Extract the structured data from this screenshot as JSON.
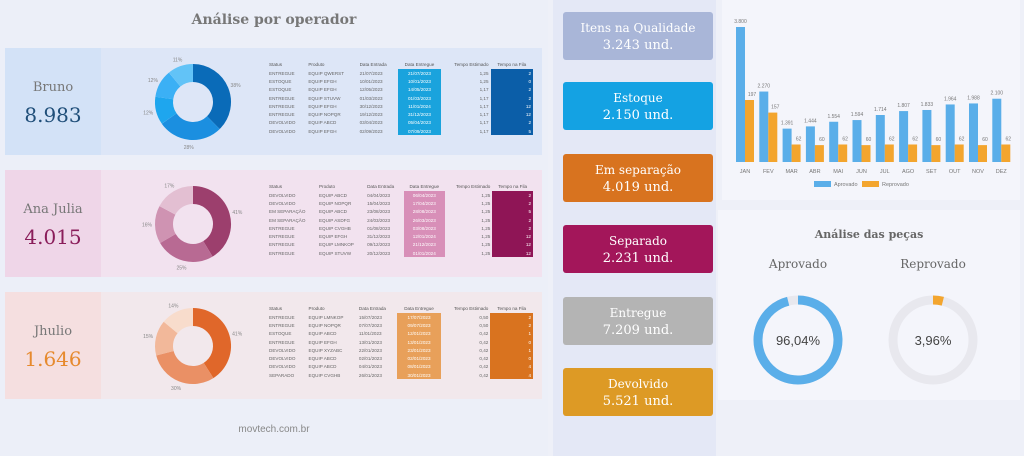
{
  "header": {
    "title": "Análise por operador"
  },
  "footer": {
    "text": "movtech.com.br"
  },
  "table_headers": [
    "Status",
    "Produto",
    "Data Entrada",
    "Data Entregue",
    "Tempo Estimado",
    "Tempo na Fila"
  ],
  "operators": [
    {
      "name": "Bruno",
      "value": "8.983",
      "bg": "#dde6f7",
      "name_bg": "#d3e2f7",
      "val_color": "#1f4e79",
      "col1": "#1aa3dd",
      "col2": "#0b5ea8",
      "donut": {
        "values": [
          38,
          28,
          12,
          12,
          11
        ],
        "labels": [
          "38%",
          "28%",
          "12%",
          "12%",
          "11%"
        ],
        "colors": [
          "#0a6bb8",
          "#1b8fe0",
          "#1ea6ee",
          "#3bb0f5",
          "#62c3f7"
        ]
      },
      "rows": [
        [
          "ENTREGUE",
          "EQUIP QWERST",
          "21/07/2023",
          "21/07/2023",
          "1,25",
          "2"
        ],
        [
          "ESTOQUE",
          "EQUIP EFGH",
          "10/01/2023",
          "10/01/2023",
          "1,25",
          "0"
        ],
        [
          "ESTOQUE",
          "EQUIP EFGH",
          "12/05/2023",
          "14/05/2023",
          "1,17",
          "2"
        ],
        [
          "ENTREGUE",
          "EQUIP STUVW",
          "01/03/2023",
          "01/03/2023",
          "1,17",
          "2"
        ],
        [
          "ENTREGUE",
          "EQUIP EFGH",
          "30/12/2023",
          "11/01/2024",
          "1,17",
          "12"
        ],
        [
          "ENTREGUE",
          "EQUIP NOPQR",
          "19/12/2023",
          "31/12/2023",
          "1,17",
          "12"
        ],
        [
          "DEVOLVIDO",
          "EQUIP ABCD",
          "03/04/2023",
          "05/04/2023",
          "1,17",
          "2"
        ],
        [
          "DEVOLVIDO",
          "EQUIP EFGH",
          "02/09/2023",
          "07/09/2023",
          "1,17",
          "5"
        ]
      ]
    },
    {
      "name": "Ana Julia",
      "value": "4.015",
      "bg": "#f2e2ef",
      "name_bg": "#efd6e8",
      "val_color": "#8a1d5a",
      "col1": "#d88fb8",
      "col2": "#8f1556",
      "donut": {
        "values": [
          41,
          25,
          16,
          17
        ],
        "labels": [
          "41%",
          "25%",
          "16%",
          "17%"
        ],
        "colors": [
          "#9c3f6d",
          "#b86a93",
          "#cf93b2",
          "#e3bfd2"
        ]
      },
      "rows": [
        [
          "DEVOLVIDO",
          "EQUIP ABCD",
          "04/04/2023",
          "06/04/2023",
          "1,25",
          "2"
        ],
        [
          "DEVOLVIDO",
          "EQUIP NOPQR",
          "15/04/2023",
          "17/04/2023",
          "1,25",
          "2"
        ],
        [
          "EM SEPARAÇÃO",
          "EQUIP ABCD",
          "23/08/2023",
          "28/08/2023",
          "1,25",
          "5"
        ],
        [
          "EM SEPARAÇÃO",
          "EQUIP ASDFG",
          "24/03/2023",
          "26/03/2023",
          "1,25",
          "2"
        ],
        [
          "ENTREGUE",
          "EQUIP CVGHB",
          "01/08/2023",
          "03/08/2023",
          "1,25",
          "2"
        ],
        [
          "ENTREGUE",
          "EQUIP EFGH",
          "31/12/2023",
          "12/01/2024",
          "1,25",
          "12"
        ],
        [
          "ENTREGUE",
          "EQUIP LMNKOP",
          "09/12/2023",
          "21/12/2023",
          "1,25",
          "12"
        ],
        [
          "ENTREGUE",
          "EQUIP STUVW",
          "20/12/2023",
          "01/01/2024",
          "1,25",
          "12"
        ]
      ]
    },
    {
      "name": "Jhulio",
      "value": "1.646",
      "bg": "#f2e8ec",
      "name_bg": "#f5dfe0",
      "val_color": "#e68a2e",
      "col1": "#e8a05a",
      "col2": "#d9731f",
      "donut": {
        "values": [
          41,
          30,
          15,
          14
        ],
        "labels": [
          "41%",
          "30%",
          "15%",
          "14%"
        ],
        "colors": [
          "#e0672a",
          "#ea9065",
          "#f2b89a",
          "#f8dccc"
        ]
      },
      "rows": [
        [
          "ENTREGUE",
          "EQUIP LMNKOP",
          "15/07/2023",
          "17/07/2023",
          "0,50",
          "2"
        ],
        [
          "ENTREGUE",
          "EQUIP NOPQR",
          "07/07/2023",
          "09/07/2023",
          "0,50",
          "2"
        ],
        [
          "ESTOQUE",
          "EQUIP ABCD",
          "11/01/2023",
          "12/01/2023",
          "0,42",
          "1"
        ],
        [
          "ENTREGUE",
          "EQUIP EFGH",
          "13/01/2023",
          "13/01/2023",
          "0,42",
          "0"
        ],
        [
          "DEVOLVIDO",
          "EQUIP XYZABC",
          "22/01/2023",
          "23/01/2023",
          "0,42",
          "1"
        ],
        [
          "DEVOLVIDO",
          "EQUIP ABCD",
          "02/01/2023",
          "02/01/2023",
          "0,42",
          "0"
        ],
        [
          "DEVOLVIDO",
          "EQUIP ABCD",
          "04/01/2023",
          "08/01/2023",
          "0,42",
          "4"
        ],
        [
          "SEPARADO",
          "EQUIP CVGHB",
          "26/01/2023",
          "30/01/2023",
          "0,42",
          "4"
        ]
      ]
    }
  ],
  "cards": [
    {
      "label": "Itens na Qualidade",
      "value": "3.243 und.",
      "color": "#a9b6d8"
    },
    {
      "label": "Estoque",
      "value": "2.150 und.",
      "color": "#14a2e3"
    },
    {
      "label": "Em separação",
      "value": "4.019 und.",
      "color": "#d8731f"
    },
    {
      "label": "Separado",
      "value": "2.231 und.",
      "color": "#a3165a"
    },
    {
      "label": "Entregue",
      "value": "7.209 und.",
      "color": "#b4b4b4"
    },
    {
      "label": "Devolvido",
      "value": "5.521 und.",
      "color": "#dd9a25"
    }
  ],
  "chart_data": {
    "type": "bar",
    "categories": [
      "JAN",
      "FEV",
      "MAR",
      "ABR",
      "MAI",
      "JUN",
      "JUL",
      "AGO",
      "SET",
      "OUT",
      "NOV",
      "DEZ"
    ],
    "series": [
      {
        "name": "Aprovado",
        "color": "#5aaee9",
        "values": [
          3800,
          2270,
          1391,
          1444,
          1554,
          1594,
          1714,
          1807,
          1833,
          1964,
          1988,
          2100
        ],
        "labels": [
          "3.800",
          "2.270",
          "1.391",
          "1.444",
          "1.554",
          "1.594",
          "1.714",
          "1.807",
          "1.833",
          "1.964",
          "1.988",
          "2.100"
        ]
      },
      {
        "name": "Reprovado",
        "color": "#f3a52e",
        "values": [
          197,
          157,
          62,
          60,
          62,
          60,
          62,
          62,
          60,
          62,
          60,
          62
        ],
        "labels": [
          "197",
          "157",
          "62",
          "60",
          "62",
          "60",
          "62",
          "62",
          "60",
          "62",
          "60",
          "62"
        ]
      }
    ],
    "legend": "bottom"
  },
  "pieces": {
    "title": "Análise das peças",
    "approved_label": "Aprovado",
    "approved_value": "96,04%",
    "approved_pct": 96.04,
    "approved_color": "#5aaee9",
    "rejected_label": "Reprovado",
    "rejected_value": "3,96%",
    "rejected_pct": 3.96,
    "rejected_color": "#f3a52e"
  }
}
